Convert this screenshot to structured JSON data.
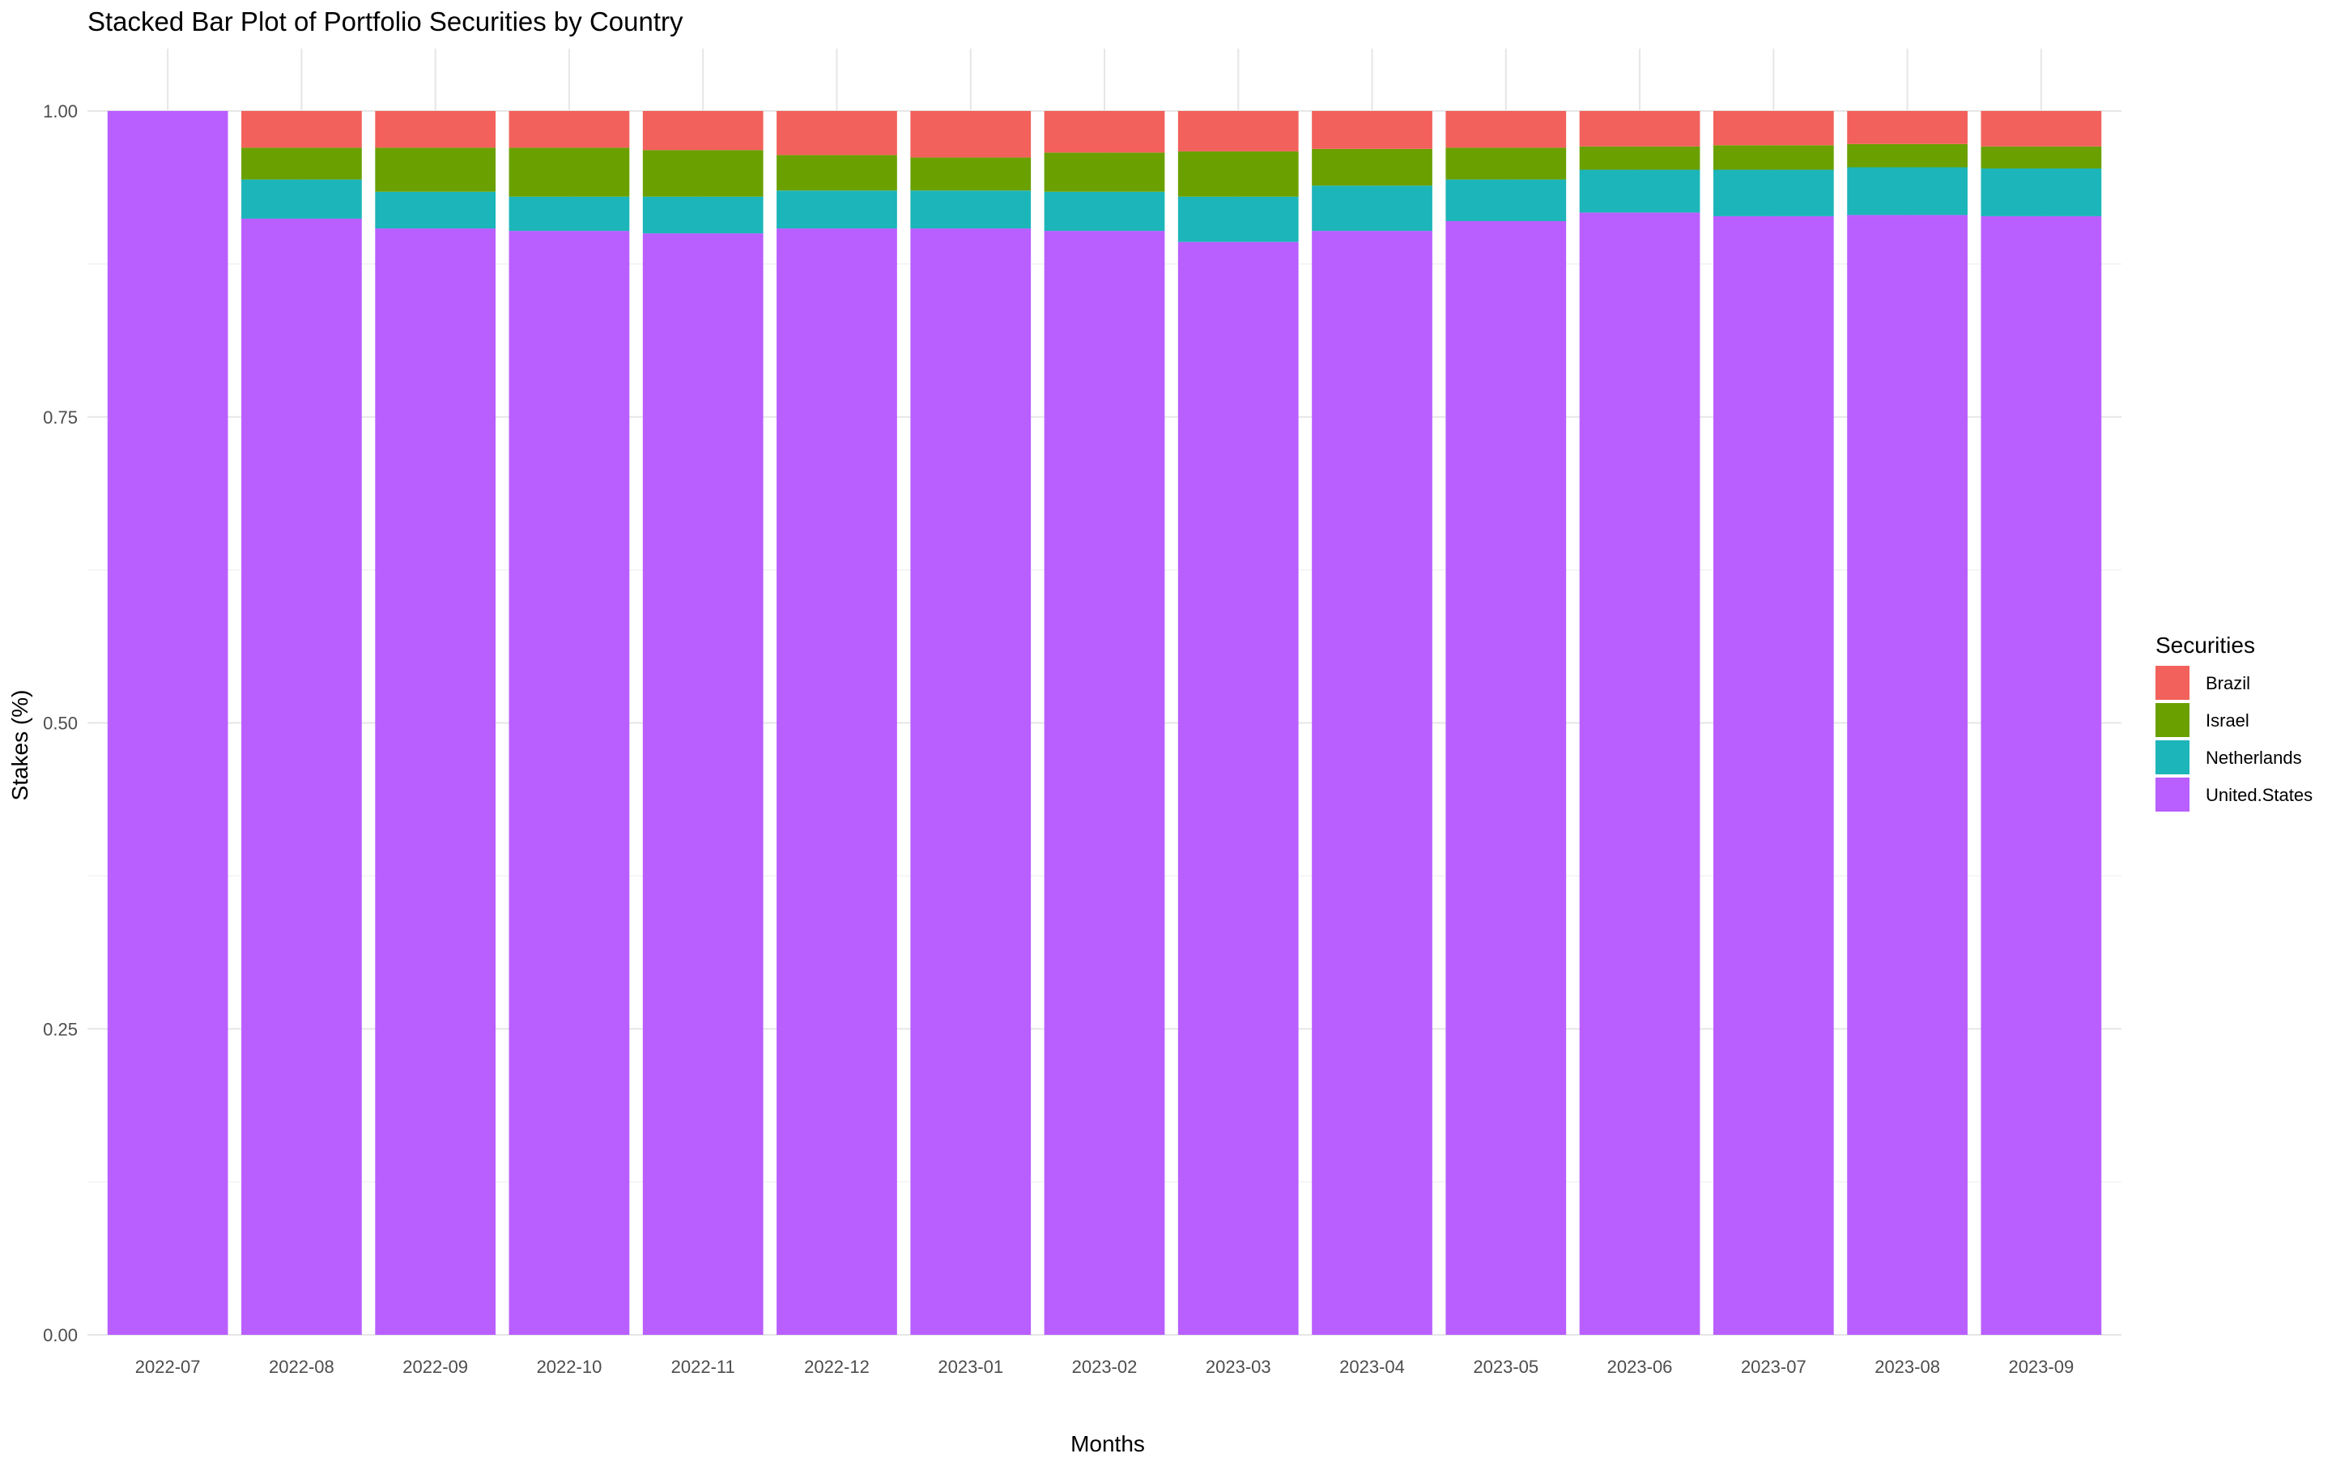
{
  "chart_data": {
    "type": "bar",
    "stacked": true,
    "title": "Stacked Bar Plot of Portfolio Securities by Country",
    "xlabel": "Months",
    "ylabel": "Stakes (%)",
    "ylim": [
      0,
      1
    ],
    "yticks": [
      "0.00",
      "0.25",
      "0.50",
      "0.75",
      "1.00"
    ],
    "grid": true,
    "legend_title": "Securities",
    "legend_position": "right",
    "categories": [
      "2022-07",
      "2022-08",
      "2022-09",
      "2022-10",
      "2022-11",
      "2022-12",
      "2023-01",
      "2023-02",
      "2023-03",
      "2023-04",
      "2023-05",
      "2023-06",
      "2023-07",
      "2023-08",
      "2023-09"
    ],
    "series": [
      {
        "name": "United.States",
        "color": "#B95FFF",
        "values": [
          1.0,
          0.912,
          0.904,
          0.902,
          0.9,
          0.904,
          0.904,
          0.902,
          0.893,
          0.902,
          0.91,
          0.917,
          0.914,
          0.915,
          0.914
        ]
      },
      {
        "name": "Netherlands",
        "color": "#1CB5B9",
        "values": [
          0.0,
          0.032,
          0.03,
          0.028,
          0.03,
          0.031,
          0.031,
          0.032,
          0.037,
          0.037,
          0.034,
          0.035,
          0.038,
          0.039,
          0.039
        ]
      },
      {
        "name": "Israel",
        "color": "#6AA000",
        "values": [
          0.0,
          0.026,
          0.036,
          0.04,
          0.038,
          0.029,
          0.027,
          0.032,
          0.037,
          0.03,
          0.026,
          0.019,
          0.02,
          0.019,
          0.018
        ]
      },
      {
        "name": "Brazil",
        "color": "#F2615B",
        "values": [
          0.0,
          0.03,
          0.03,
          0.03,
          0.032,
          0.036,
          0.038,
          0.034,
          0.033,
          0.031,
          0.03,
          0.029,
          0.028,
          0.027,
          0.029
        ]
      }
    ],
    "legend_order": [
      "Brazil",
      "Israel",
      "Netherlands",
      "United.States"
    ]
  }
}
